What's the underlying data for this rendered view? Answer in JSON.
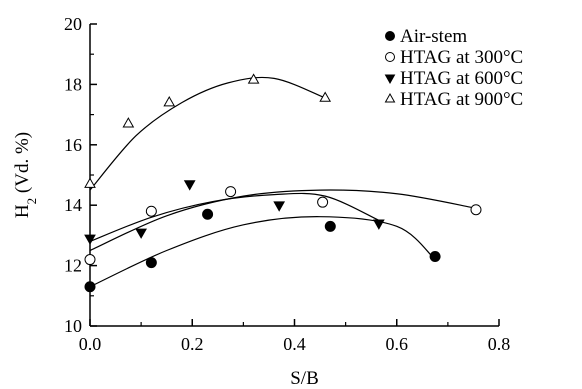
{
  "chart_data": {
    "type": "scatter",
    "title": "",
    "xlabel": "S/B",
    "ylabel_main": "H",
    "ylabel_sub": "2",
    "ylabel_rest": " (Vd. %)",
    "xlim": [
      0,
      0.8
    ],
    "ylim": [
      10,
      20
    ],
    "xticks": [
      0.0,
      0.2,
      0.4,
      0.6,
      0.8
    ],
    "xtick_labels": [
      "0.0",
      "0.2",
      "0.4",
      "0.6",
      "0.8"
    ],
    "yticks": [
      10,
      12,
      14,
      16,
      18,
      20
    ],
    "ytick_labels": [
      "10",
      "12",
      "14",
      "16",
      "18",
      "20"
    ],
    "grid": false,
    "legend_position": "top-right",
    "series": [
      {
        "name": "Air-stem",
        "marker": "filled-circle",
        "x": [
          0.0,
          0.12,
          0.23,
          0.47,
          0.675
        ],
        "y": [
          11.3,
          12.1,
          13.7,
          13.3,
          12.3
        ],
        "fit": [
          11.3,
          12.5,
          13.35,
          13.62,
          13.3,
          12.2
        ]
      },
      {
        "name": "HTAG at 300°C",
        "marker": "open-circle",
        "x": [
          0.0,
          0.12,
          0.275,
          0.455,
          0.755
        ],
        "y": [
          12.2,
          13.8,
          14.45,
          14.1,
          13.85
        ],
        "fit": [
          12.5,
          13.65,
          14.3,
          14.5,
          14.38,
          13.9
        ]
      },
      {
        "name": "HTAG at 600°C",
        "marker": "filled-triangle-down",
        "x": [
          0.0,
          0.1,
          0.195,
          0.37,
          0.565
        ],
        "y": [
          12.9,
          13.1,
          14.7,
          14.0,
          13.4
        ],
        "fit": [
          12.8,
          13.6,
          14.12,
          14.35,
          14.3,
          13.5
        ]
      },
      {
        "name": "HTAG at 900°C",
        "marker": "open-triangle-up",
        "x": [
          0.0,
          0.075,
          0.155,
          0.32,
          0.46
        ],
        "y": [
          14.7,
          16.7,
          17.4,
          18.15,
          17.55
        ],
        "fit": [
          14.5,
          16.3,
          17.4,
          18.05,
          18.2,
          17.55
        ]
      }
    ],
    "fit_x": [
      [
        0.0,
        0.15,
        0.3,
        0.45,
        0.6,
        0.675
      ],
      [
        0.0,
        0.15,
        0.3,
        0.45,
        0.6,
        0.755
      ],
      [
        0.0,
        0.12,
        0.24,
        0.36,
        0.46,
        0.565
      ],
      [
        0.0,
        0.09,
        0.18,
        0.27,
        0.36,
        0.46
      ]
    ]
  }
}
